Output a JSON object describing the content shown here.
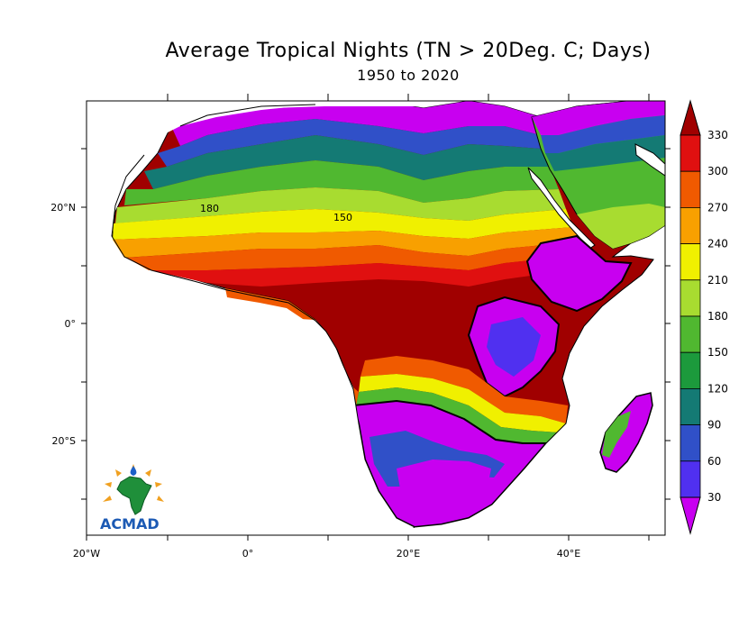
{
  "title": "Average Tropical Nights (TN > 20Deg. C; Days)",
  "subtitle": "1950 to 2020",
  "axes": {
    "x_ticks": [
      "20°W",
      "0°",
      "20°E",
      "40°E"
    ],
    "y_ticks": [
      "20°N",
      "0°",
      "20°S"
    ]
  },
  "colorbar": {
    "labels": [
      "330",
      "300",
      "270",
      "240",
      "210",
      "180",
      "150",
      "120",
      "90",
      "60",
      "30"
    ],
    "colors": [
      "#a00000",
      "#e01010",
      "#f05a00",
      "#f8a000",
      "#f0f000",
      "#a8dc30",
      "#50b830",
      "#1c9a3c",
      "#147a74",
      "#3050c8",
      "#5030f0",
      "#c800f0"
    ],
    "top_color": "#a00000",
    "bottom_color": "#c800f0"
  },
  "contour_labels": [
    "180",
    "150"
  ],
  "logo": {
    "text": "ACMAD"
  }
}
